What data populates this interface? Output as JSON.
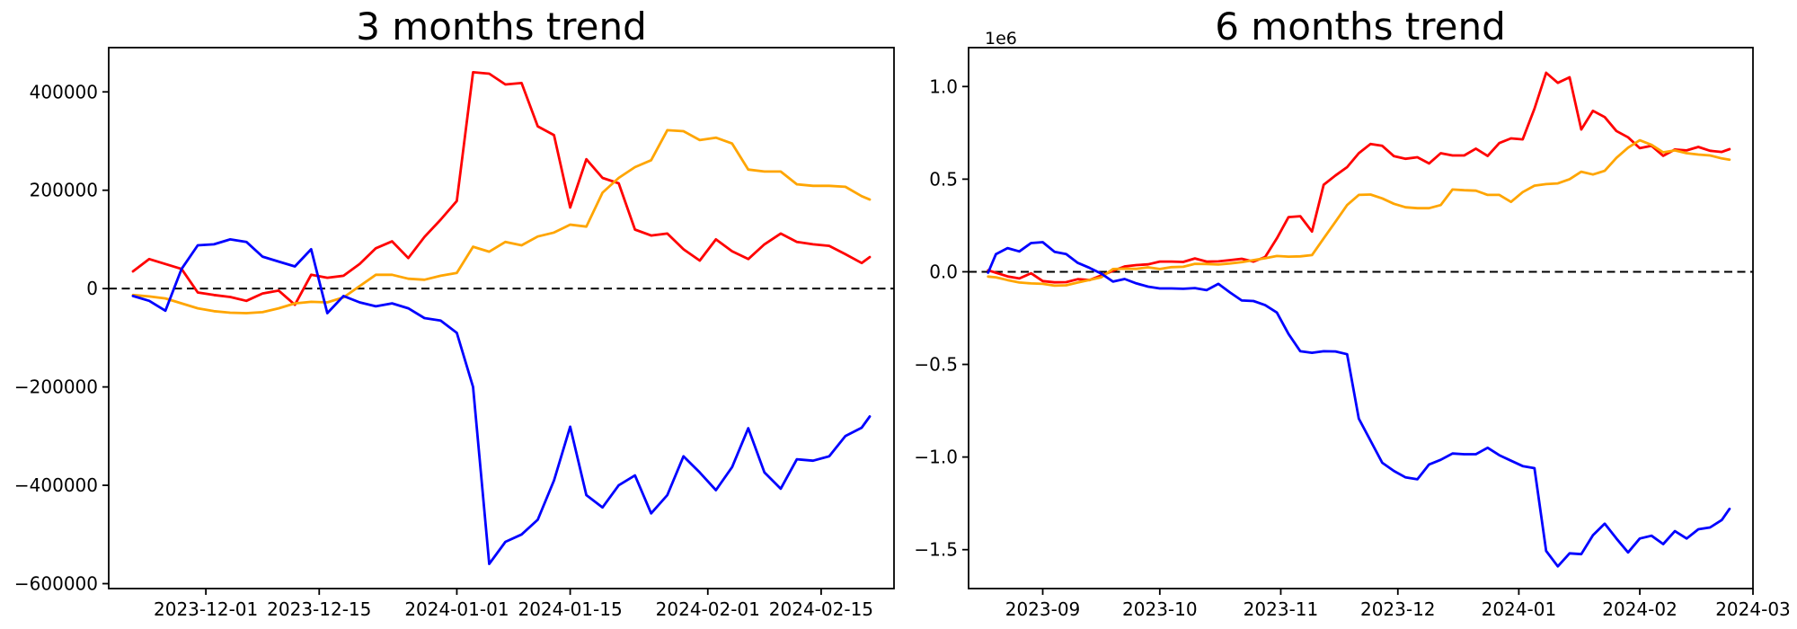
{
  "figure": {
    "background": "#ffffff",
    "text_color": "#000000",
    "zero_line_color": "#000000"
  },
  "chart_data": [
    {
      "type": "line",
      "title": "3 months trend",
      "grid": false,
      "legend": "none",
      "zero_line_dashed": true,
      "xlim": [
        "2023-11-19",
        "2024-02-24"
      ],
      "ylim": [
        -610000,
        490000
      ],
      "yticks": [
        {
          "v": 400000,
          "label": "400000"
        },
        {
          "v": 200000,
          "label": "200000"
        },
        {
          "v": 0,
          "label": "0"
        },
        {
          "v": -200000,
          "label": "−200000"
        },
        {
          "v": -400000,
          "label": "−400000"
        },
        {
          "v": -600000,
          "label": "−600000"
        }
      ],
      "xticks": [
        {
          "v": "2023-12-01",
          "label": "2023-12-01"
        },
        {
          "v": "2023-12-15",
          "label": "2023-12-15"
        },
        {
          "v": "2024-01-01",
          "label": "2024-01-01"
        },
        {
          "v": "2024-01-15",
          "label": "2024-01-15"
        },
        {
          "v": "2024-02-01",
          "label": "2024-02-01"
        },
        {
          "v": "2024-02-15",
          "label": "2024-02-15"
        }
      ],
      "x": [
        "2023-11-22",
        "2023-11-24",
        "2023-11-26",
        "2023-11-28",
        "2023-11-30",
        "2023-12-02",
        "2023-12-04",
        "2023-12-06",
        "2023-12-08",
        "2023-12-10",
        "2023-12-12",
        "2023-12-14",
        "2023-12-16",
        "2023-12-18",
        "2023-12-20",
        "2023-12-22",
        "2023-12-24",
        "2023-12-26",
        "2023-12-28",
        "2023-12-30",
        "2024-01-01",
        "2024-01-03",
        "2024-01-05",
        "2024-01-07",
        "2024-01-09",
        "2024-01-11",
        "2024-01-13",
        "2024-01-15",
        "2024-01-17",
        "2024-01-19",
        "2024-01-21",
        "2024-01-23",
        "2024-01-25",
        "2024-01-27",
        "2024-01-29",
        "2024-01-31",
        "2024-02-02",
        "2024-02-04",
        "2024-02-06",
        "2024-02-08",
        "2024-02-10",
        "2024-02-12",
        "2024-02-14",
        "2024-02-16",
        "2024-02-18",
        "2024-02-20",
        "2024-02-21"
      ],
      "series": [
        {
          "name": "red",
          "color": "#ff0000",
          "values": [
            35000,
            60000,
            50000,
            40000,
            -8000,
            -13000,
            -17000,
            -25000,
            -10000,
            -4000,
            -33000,
            28000,
            22000,
            26000,
            50000,
            82000,
            96000,
            62000,
            105000,
            140000,
            178000,
            440000,
            437000,
            415000,
            418000,
            330000,
            312000,
            165000,
            263000,
            225000,
            214000,
            120000,
            108000,
            112000,
            80000,
            57000,
            100000,
            76000,
            60000,
            90000,
            112000,
            95000,
            90000,
            87000,
            70000,
            52000,
            64000
          ]
        },
        {
          "name": "orange",
          "color": "#ffa500",
          "values": [
            -13000,
            -16000,
            -20000,
            -30000,
            -40000,
            -46000,
            -49000,
            -50000,
            -48000,
            -40000,
            -30000,
            -27000,
            -28000,
            -18000,
            5000,
            28000,
            28000,
            20000,
            18000,
            26000,
            32000,
            85000,
            75000,
            95000,
            88000,
            106000,
            114000,
            130000,
            126000,
            195000,
            225000,
            247000,
            261000,
            322000,
            320000,
            302000,
            307000,
            295000,
            242000,
            238000,
            238000,
            212000,
            209000,
            209000,
            207000,
            188000,
            181000
          ]
        },
        {
          "name": "blue",
          "color": "#0000ff",
          "values": [
            -15000,
            -25000,
            -45000,
            40000,
            88000,
            90000,
            100000,
            95000,
            65000,
            55000,
            45000,
            80000,
            -50000,
            -15000,
            -28000,
            -36000,
            -30000,
            -40000,
            -60000,
            -65000,
            -90000,
            -200000,
            -560000,
            -515000,
            -500000,
            -470000,
            -390000,
            -281000,
            -420000,
            -445000,
            -400000,
            -380000,
            -457000,
            -420000,
            -341000,
            -374000,
            -410000,
            -363000,
            -284000,
            -374000,
            -407000,
            -347000,
            -350000,
            -341000,
            -300000,
            -283000,
            -260000
          ]
        }
      ]
    },
    {
      "type": "line",
      "title": "6 months trend",
      "grid": false,
      "legend": "none",
      "zero_line_dashed": true,
      "offset_text": "1e6",
      "xlim": [
        "2023-08-13",
        "2024-03-01"
      ],
      "ylim": [
        -1710000,
        1210000
      ],
      "yticks": [
        {
          "v": 1000000,
          "label": "1.0"
        },
        {
          "v": 500000,
          "label": "0.5"
        },
        {
          "v": 0,
          "label": "0.0"
        },
        {
          "v": -500000,
          "label": "−0.5"
        },
        {
          "v": -1000000,
          "label": "−1.0"
        },
        {
          "v": -1500000,
          "label": "−1.5"
        }
      ],
      "xticks": [
        {
          "v": "2023-09-01",
          "label": "2023-09"
        },
        {
          "v": "2023-10-01",
          "label": "2023-10"
        },
        {
          "v": "2023-11-01",
          "label": "2023-11"
        },
        {
          "v": "2023-12-01",
          "label": "2023-12"
        },
        {
          "v": "2024-01-01",
          "label": "2024-01"
        },
        {
          "v": "2024-02-01",
          "label": "2024-02"
        },
        {
          "v": "2024-03-01",
          "label": "2024-03"
        }
      ],
      "x": [
        "2023-08-18",
        "2023-08-20",
        "2023-08-23",
        "2023-08-26",
        "2023-08-29",
        "2023-09-01",
        "2023-09-04",
        "2023-09-07",
        "2023-09-10",
        "2023-09-13",
        "2023-09-16",
        "2023-09-19",
        "2023-09-22",
        "2023-09-25",
        "2023-09-28",
        "2023-10-01",
        "2023-10-04",
        "2023-10-07",
        "2023-10-10",
        "2023-10-13",
        "2023-10-16",
        "2023-10-19",
        "2023-10-22",
        "2023-10-25",
        "2023-10-28",
        "2023-10-31",
        "2023-11-03",
        "2023-11-06",
        "2023-11-09",
        "2023-11-12",
        "2023-11-15",
        "2023-11-18",
        "2023-11-21",
        "2023-11-24",
        "2023-11-27",
        "2023-11-30",
        "2023-12-03",
        "2023-12-06",
        "2023-12-09",
        "2023-12-12",
        "2023-12-15",
        "2023-12-18",
        "2023-12-21",
        "2023-12-24",
        "2023-12-27",
        "2023-12-30",
        "2024-01-02",
        "2024-01-05",
        "2024-01-08",
        "2024-01-11",
        "2024-01-14",
        "2024-01-17",
        "2024-01-20",
        "2024-01-23",
        "2024-01-26",
        "2024-01-29",
        "2024-02-01",
        "2024-02-04",
        "2024-02-07",
        "2024-02-10",
        "2024-02-13",
        "2024-02-16",
        "2024-02-19",
        "2024-02-22",
        "2024-02-24"
      ],
      "series": [
        {
          "name": "red",
          "color": "#ff0000",
          "values": [
            8000,
            -5000,
            -25000,
            -36000,
            -8000,
            -50000,
            -57000,
            -56000,
            -40000,
            -45000,
            -20000,
            5000,
            29000,
            36000,
            40000,
            55000,
            55000,
            53000,
            72000,
            55000,
            56000,
            63000,
            70000,
            55000,
            80000,
            180000,
            295000,
            300000,
            217000,
            470000,
            520000,
            565000,
            640000,
            690000,
            680000,
            624000,
            610000,
            618000,
            585000,
            640000,
            628000,
            628000,
            665000,
            625000,
            695000,
            720000,
            715000,
            880000,
            1074000,
            1020000,
            1050000,
            768000,
            869000,
            835000,
            760000,
            726000,
            667000,
            680000,
            626000,
            660000,
            655000,
            674000,
            653000,
            647000,
            662000
          ]
        },
        {
          "name": "orange",
          "color": "#ffa500",
          "values": [
            -26000,
            -30000,
            -45000,
            -58000,
            -63000,
            -65000,
            -75000,
            -73000,
            -58000,
            -44000,
            -30000,
            15000,
            17000,
            16000,
            24000,
            15000,
            25000,
            27000,
            43000,
            42000,
            39000,
            45000,
            52000,
            63000,
            73000,
            85000,
            82000,
            83000,
            90000,
            180000,
            270000,
            360000,
            415000,
            417000,
            396000,
            367000,
            348000,
            343000,
            343000,
            360000,
            444000,
            440000,
            438000,
            415000,
            415000,
            377000,
            430000,
            465000,
            473000,
            477000,
            500000,
            540000,
            525000,
            545000,
            615000,
            670000,
            710000,
            685000,
            645000,
            655000,
            640000,
            633000,
            628000,
            612000,
            605000
          ]
        },
        {
          "name": "blue",
          "color": "#0000ff",
          "values": [
            -5000,
            95000,
            128000,
            110000,
            155000,
            160000,
            108000,
            96000,
            48000,
            21000,
            -10000,
            -53000,
            -39000,
            -63000,
            -80000,
            -90000,
            -90000,
            -92000,
            -88000,
            -99000,
            -65000,
            -112000,
            -155000,
            -158000,
            -180000,
            -220000,
            -336000,
            -429000,
            -437000,
            -429000,
            -430000,
            -445000,
            -793000,
            -912000,
            -1031000,
            -1075000,
            -1110000,
            -1120000,
            -1040000,
            -1015000,
            -981000,
            -985000,
            -985000,
            -950000,
            -990000,
            -1020000,
            -1049000,
            -1060000,
            -1507000,
            -1590000,
            -1520000,
            -1524000,
            -1422000,
            -1360000,
            -1440000,
            -1515000,
            -1440000,
            -1425000,
            -1470000,
            -1400000,
            -1440000,
            -1390000,
            -1380000,
            -1340000,
            -1280000
          ]
        }
      ]
    }
  ]
}
